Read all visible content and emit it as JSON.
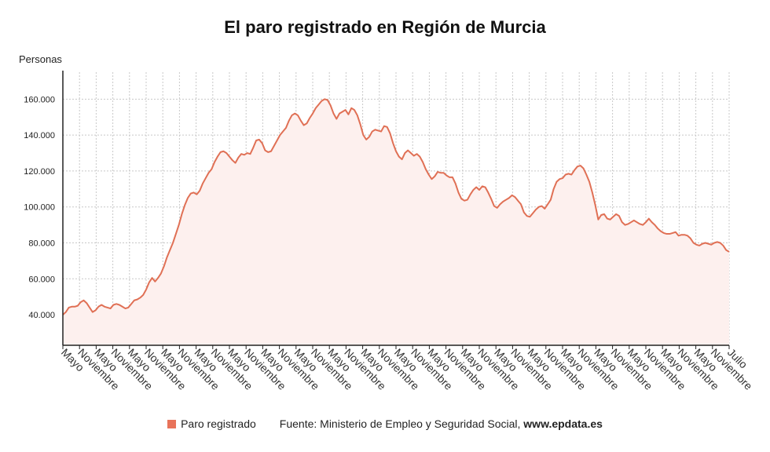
{
  "chart_data": {
    "type": "area",
    "title": "El paro registrado en Región de Murcia",
    "ylabel": "Personas",
    "ylim": [
      23000,
      175000
    ],
    "yticks": [
      40000,
      60000,
      80000,
      100000,
      120000,
      140000,
      160000
    ],
    "ytick_labels": [
      "40.000",
      "60.000",
      "80.000",
      "100.000",
      "120.000",
      "140.000",
      "160.000"
    ],
    "xtick_labels": [
      "Mayo",
      "Noviembre",
      "Mayo",
      "Noviembre",
      "Mayo",
      "Noviembre",
      "Mayo",
      "Noviembre",
      "Mayo",
      "Noviembre",
      "Mayo",
      "Noviembre",
      "Mayo",
      "Noviembre",
      "Mayo",
      "Noviembre",
      "Mayo",
      "Noviembre",
      "Mayo",
      "Noviembre",
      "Mayo",
      "Noviembre",
      "Mayo",
      "Noviembre",
      "Mayo",
      "Noviembre",
      "Mayo",
      "Noviembre",
      "Mayo",
      "Noviembre",
      "Mayo",
      "Noviembre",
      "Mayo",
      "Noviembre",
      "Mayo",
      "Noviembre",
      "Mayo",
      "Noviembre",
      "Mayo",
      "Noviembre",
      "Julio"
    ],
    "grid": true,
    "line_color": "#e07055",
    "fill_color": "#fdf0ee",
    "series": [
      {
        "name": "Paro registrado",
        "values": [
          40000,
          41500,
          44000,
          44500,
          44500,
          45000,
          47000,
          48000,
          46500,
          44000,
          41500,
          42500,
          44500,
          45500,
          44500,
          44000,
          43500,
          45500,
          46000,
          45500,
          44500,
          43500,
          44000,
          46000,
          48000,
          48500,
          49500,
          51000,
          54000,
          58000,
          60500,
          58500,
          60500,
          63000,
          67000,
          72000,
          76000,
          80000,
          85000,
          90000,
          96000,
          101000,
          105000,
          107500,
          108000,
          107000,
          109000,
          113000,
          116000,
          119000,
          121000,
          125000,
          128000,
          130500,
          131000,
          130000,
          128000,
          126000,
          124500,
          127500,
          129500,
          129000,
          130000,
          129500,
          133000,
          137000,
          137500,
          135500,
          131500,
          130500,
          131000,
          134000,
          137000,
          140000,
          142000,
          144000,
          148000,
          151000,
          152000,
          151000,
          148000,
          145500,
          146500,
          149500,
          152000,
          155000,
          157000,
          159000,
          160000,
          159500,
          156500,
          152000,
          149000,
          152000,
          153000,
          154000,
          151500,
          155000,
          154000,
          151000,
          146000,
          140000,
          137500,
          139000,
          142000,
          143000,
          142500,
          142000,
          145000,
          144500,
          141000,
          135500,
          131000,
          128000,
          126500,
          130000,
          131500,
          130000,
          128500,
          129500,
          128000,
          125000,
          121000,
          118000,
          115500,
          117000,
          119500,
          119000,
          119000,
          117500,
          116500,
          116500,
          113000,
          108000,
          104500,
          103500,
          104000,
          107000,
          109500,
          111000,
          109500,
          111500,
          111000,
          108000,
          104500,
          100500,
          99500,
          101500,
          103000,
          104000,
          105000,
          106500,
          105500,
          103500,
          101500,
          97000,
          95000,
          94500,
          96500,
          98500,
          100000,
          100500,
          99000,
          101500,
          104000,
          110000,
          114000,
          115500,
          116000,
          118000,
          118500,
          118000,
          120500,
          122500,
          123000,
          121500,
          118000,
          114000,
          108000,
          101000,
          93000,
          95500,
          96000,
          93500,
          93000,
          94500,
          96000,
          95000,
          91500,
          90000,
          90500,
          91500,
          92500,
          91500,
          90500,
          90000,
          91500,
          93500,
          91500,
          90000,
          88000,
          86500,
          85500,
          85000,
          85000,
          85500,
          86000,
          84000,
          84500,
          84500,
          84000,
          82500,
          80000,
          79000,
          78500,
          79500,
          80000,
          79500,
          79000,
          80000,
          80500,
          80000,
          78500,
          76000,
          75000
        ]
      }
    ]
  },
  "legend": {
    "series_label": "Paro registrado",
    "source_prefix": "Fuente: Ministerio de Empleo y Seguridad Social, ",
    "source_site": "www.epdata.es"
  }
}
